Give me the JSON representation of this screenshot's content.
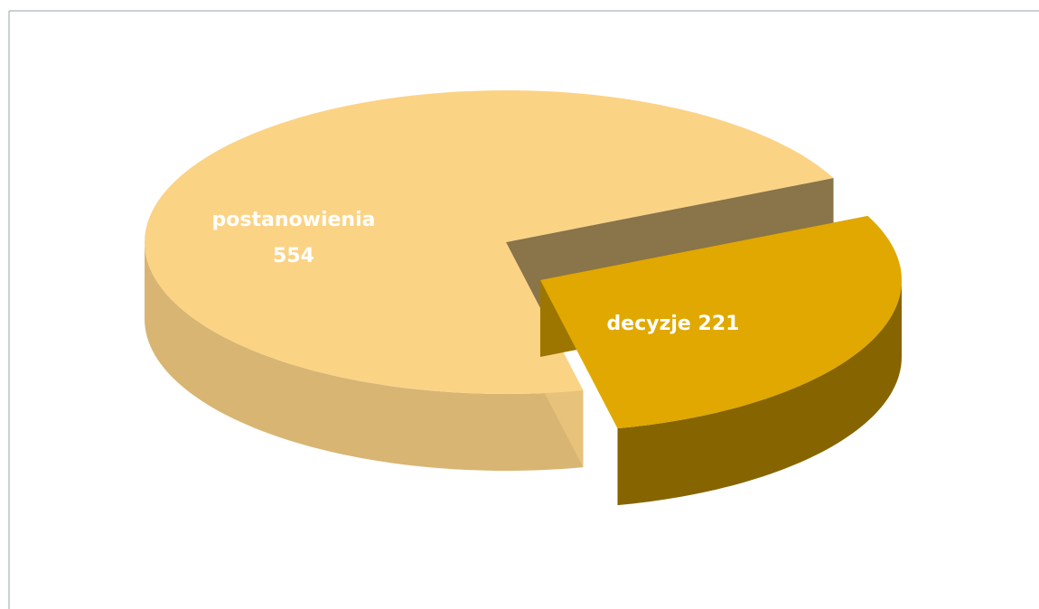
{
  "chart_data": {
    "type": "pie",
    "categories": [
      "postanowienia",
      "decyzje"
    ],
    "values": [
      554,
      221
    ],
    "colors": [
      "#fbd385",
      "#e0a800"
    ]
  }
}
